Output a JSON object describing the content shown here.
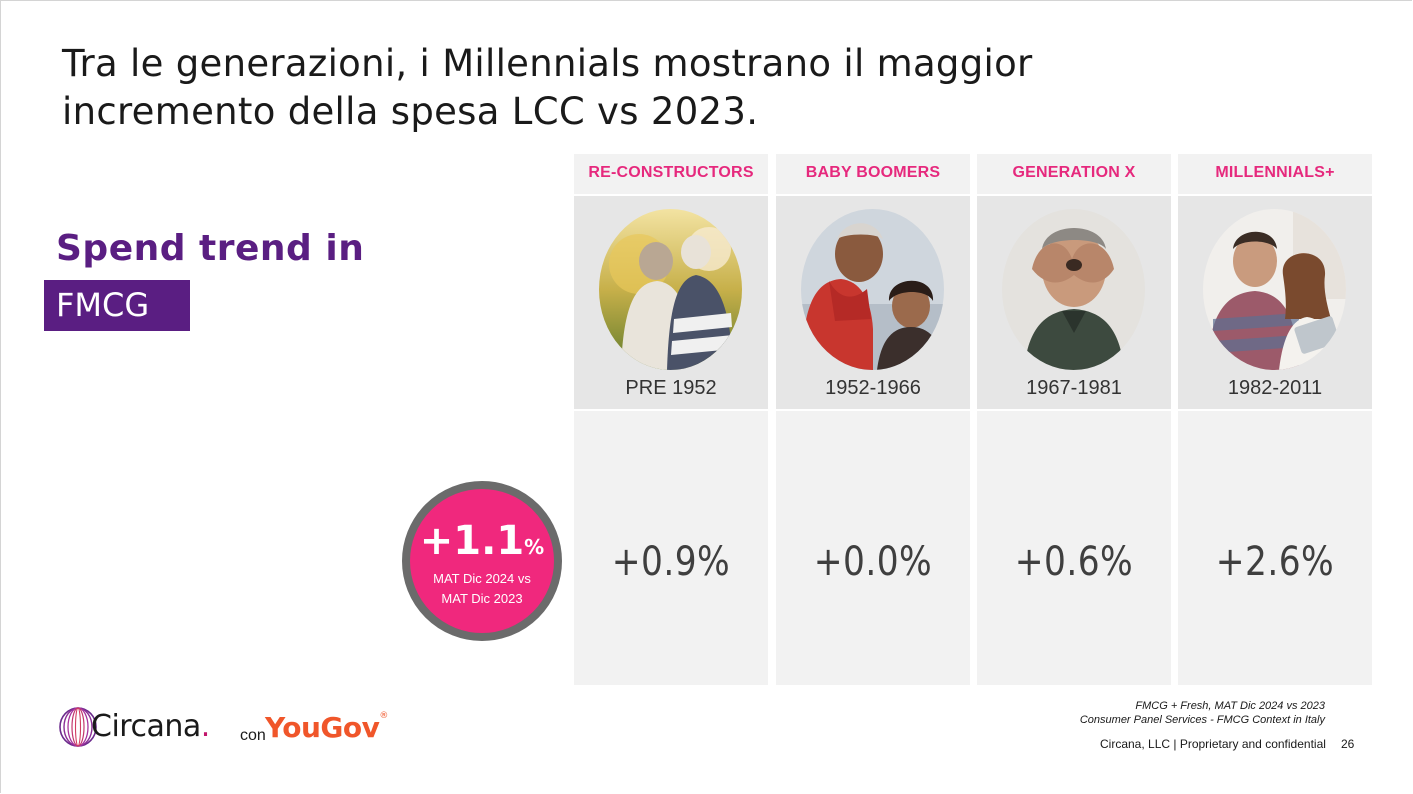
{
  "slide": {
    "title": "Tra le generazioni, i Millennials mostrano il maggior incremento della spesa LCC vs 2023.",
    "subtitle_line": "Spend trend in",
    "subtitle_box": "FMCG"
  },
  "total": {
    "value": "+1.1",
    "unit": "%",
    "caption_line1": "MAT Dic 2024 vs",
    "caption_line2": "MAT Dic 2023"
  },
  "generations": [
    {
      "name": "RE-CONSTRUCTORS",
      "years": "PRE 1952",
      "value": "+0.9%",
      "photo": "elderly-couple-photo"
    },
    {
      "name": "BABY BOOMERS",
      "years": "1952-1966",
      "value": "+0.0%",
      "photo": "senior-couple-photo"
    },
    {
      "name": "GENERATION X",
      "years": "1967-1981",
      "value": "+0.6%",
      "photo": "man-heart-hands-photo"
    },
    {
      "name": "MILLENNIALS+",
      "years": "1982-2011",
      "value": "+2.6%",
      "photo": "young-couple-tablet-photo"
    }
  ],
  "branding": {
    "circana": "Circana",
    "circana_dot": ".",
    "con": "con",
    "yougov": "YouGov",
    "registered": "®"
  },
  "source": {
    "line1": "FMCG + Fresh, MAT Dic 2024 vs 2023",
    "line2": "Consumer Panel Services - FMCG Context in Italy"
  },
  "footer": {
    "text": "Circana, LLC |  Proprietary and confidential",
    "page": "26"
  },
  "colors": {
    "accent_pink": "#e6297d",
    "brand_purple": "#5a1e82",
    "yougov_orange": "#f0562a"
  }
}
